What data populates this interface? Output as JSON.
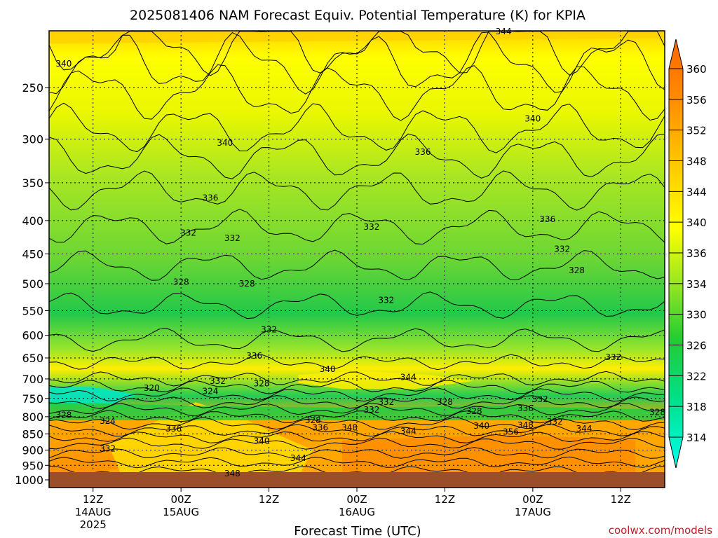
{
  "chart_data": {
    "type": "heatmap",
    "title": "2025081406 NAM Forecast Equiv. Potential Temperature (K) for KPIA",
    "xlabel": "Forecast Time (UTC)",
    "ylabel": "",
    "y_axis": {
      "scale": "log-pressure",
      "reversed": true,
      "ylim": [
        1000,
        200
      ],
      "ticks": [
        "250",
        "300",
        "350",
        "400",
        "450",
        "500",
        "550",
        "600",
        "650",
        "700",
        "750",
        "800",
        "850",
        "900",
        "950",
        "1000"
      ]
    },
    "x_axis": {
      "ticks": [
        {
          "hour": 6,
          "label": "12Z",
          "date": "14AUG",
          "year": "2025"
        },
        {
          "hour": 18,
          "label": "00Z",
          "date": "15AUG",
          "year": ""
        },
        {
          "hour": 30,
          "label": "12Z",
          "date": "",
          "year": ""
        },
        {
          "hour": 42,
          "label": "00Z",
          "date": "16AUG",
          "year": ""
        },
        {
          "hour": 54,
          "label": "12Z",
          "date": "",
          "year": ""
        },
        {
          "hour": 66,
          "label": "00Z",
          "date": "17AUG",
          "year": ""
        },
        {
          "hour": 78,
          "label": "12Z",
          "date": "",
          "year": ""
        }
      ],
      "xlim": [
        0,
        84
      ]
    },
    "colorbar": {
      "min": 312,
      "max": 362,
      "labels": [
        "360",
        "356",
        "352",
        "348",
        "344",
        "340",
        "336",
        "334",
        "330",
        "326",
        "322",
        "318",
        "314"
      ]
    },
    "grid": true,
    "contour_labels": [
      {
        "t": 2,
        "p": 232,
        "value": "340"
      },
      {
        "t": 62,
        "p": 207,
        "value": "344"
      },
      {
        "t": 66,
        "p": 282,
        "value": "340"
      },
      {
        "t": 24,
        "p": 307,
        "value": "340"
      },
      {
        "t": 51,
        "p": 317,
        "value": "336"
      },
      {
        "t": 22,
        "p": 373,
        "value": "336"
      },
      {
        "t": 68,
        "p": 402,
        "value": "336"
      },
      {
        "t": 44,
        "p": 413,
        "value": "332"
      },
      {
        "t": 19,
        "p": 422,
        "value": "332"
      },
      {
        "t": 25,
        "p": 430,
        "value": "332"
      },
      {
        "t": 70,
        "p": 447,
        "value": "332"
      },
      {
        "t": 72,
        "p": 482,
        "value": "328"
      },
      {
        "t": 18,
        "p": 502,
        "value": "328"
      },
      {
        "t": 27,
        "p": 505,
        "value": "328"
      },
      {
        "t": 46,
        "p": 535,
        "value": "332"
      },
      {
        "t": 30,
        "p": 594,
        "value": "332"
      },
      {
        "t": 28,
        "p": 652,
        "value": "336"
      },
      {
        "t": 77,
        "p": 655,
        "value": "332"
      },
      {
        "t": 38,
        "p": 683,
        "value": "340"
      },
      {
        "t": 49,
        "p": 703,
        "value": "344"
      },
      {
        "t": 23,
        "p": 712,
        "value": "332"
      },
      {
        "t": 29,
        "p": 719,
        "value": "328"
      },
      {
        "t": 14,
        "p": 730,
        "value": "320"
      },
      {
        "t": 22,
        "p": 738,
        "value": "324"
      },
      {
        "t": 67,
        "p": 760,
        "value": "332"
      },
      {
        "t": 46,
        "p": 767,
        "value": "332"
      },
      {
        "t": 54,
        "p": 767,
        "value": "328"
      },
      {
        "t": 65,
        "p": 785,
        "value": "336"
      },
      {
        "t": 44,
        "p": 788,
        "value": "332"
      },
      {
        "t": 58,
        "p": 792,
        "value": "328"
      },
      {
        "t": 2,
        "p": 803,
        "value": "328"
      },
      {
        "t": 83,
        "p": 795,
        "value": "328"
      },
      {
        "t": 8,
        "p": 820,
        "value": "324"
      },
      {
        "t": 36,
        "p": 818,
        "value": "328"
      },
      {
        "t": 69,
        "p": 822,
        "value": "332"
      },
      {
        "t": 59,
        "p": 835,
        "value": "340"
      },
      {
        "t": 65,
        "p": 833,
        "value": "348"
      },
      {
        "t": 37,
        "p": 840,
        "value": "336"
      },
      {
        "t": 41,
        "p": 840,
        "value": "348"
      },
      {
        "t": 73,
        "p": 843,
        "value": "344"
      },
      {
        "t": 49,
        "p": 850,
        "value": "344"
      },
      {
        "t": 63,
        "p": 852,
        "value": "356"
      },
      {
        "t": 17,
        "p": 843,
        "value": "336"
      },
      {
        "t": 29,
        "p": 880,
        "value": "340"
      },
      {
        "t": 8,
        "p": 905,
        "value": "332"
      },
      {
        "t": 34,
        "p": 935,
        "value": "344"
      },
      {
        "t": 25,
        "p": 988,
        "value": "348"
      }
    ],
    "footer_credit": "coolwx.com/models"
  }
}
